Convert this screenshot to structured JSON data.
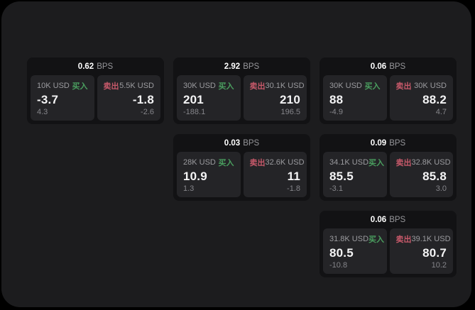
{
  "colors": {
    "background": "#000000",
    "panel": "#1c1c1e",
    "card": "#121214",
    "tile": "#242427",
    "buy_green": "#4a9e5f",
    "sell_red": "#c7596a",
    "label_gray": "#9b9b9f",
    "sub_gray": "#85858a",
    "value_white": "#f4f4f5",
    "unit_gray": "#96969a"
  },
  "labels": {
    "bps_unit": "BPS",
    "buy": "买入",
    "sell": "卖出"
  },
  "cards": [
    {
      "bps": "0.62",
      "col": 1,
      "row": 1,
      "buy": {
        "amount": "10K USD",
        "value": "-3.7",
        "delta": "4.3"
      },
      "sell": {
        "amount": "5.5K USD",
        "value": "-1.8",
        "delta": "-2.6"
      }
    },
    {
      "bps": "2.92",
      "col": 2,
      "row": 1,
      "buy": {
        "amount": "30K USD",
        "value": "201",
        "delta": "-188.1"
      },
      "sell": {
        "amount": "30.1K USD",
        "value": "210",
        "delta": "196.5"
      }
    },
    {
      "bps": "0.06",
      "col": 3,
      "row": 1,
      "buy": {
        "amount": "30K USD",
        "value": "88",
        "delta": "-4.9"
      },
      "sell": {
        "amount": "30K USD",
        "value": "88.2",
        "delta": "4.7"
      }
    },
    {
      "bps": "0.03",
      "col": 2,
      "row": 2,
      "buy": {
        "amount": "28K USD",
        "value": "10.9",
        "delta": "1.3"
      },
      "sell": {
        "amount": "32.6K USD",
        "value": "11",
        "delta": "-1.8"
      }
    },
    {
      "bps": "0.09",
      "col": 3,
      "row": 2,
      "buy": {
        "amount": "34.1K USD",
        "value": "85.5",
        "delta": "-3.1"
      },
      "sell": {
        "amount": "32.8K USD",
        "value": "85.8",
        "delta": "3.0"
      }
    },
    {
      "bps": "0.06",
      "col": 3,
      "row": 3,
      "buy": {
        "amount": "31.8K USD",
        "value": "80.5",
        "delta": "-10.8"
      },
      "sell": {
        "amount": "39.1K USD",
        "value": "80.7",
        "delta": "10.2"
      }
    }
  ]
}
